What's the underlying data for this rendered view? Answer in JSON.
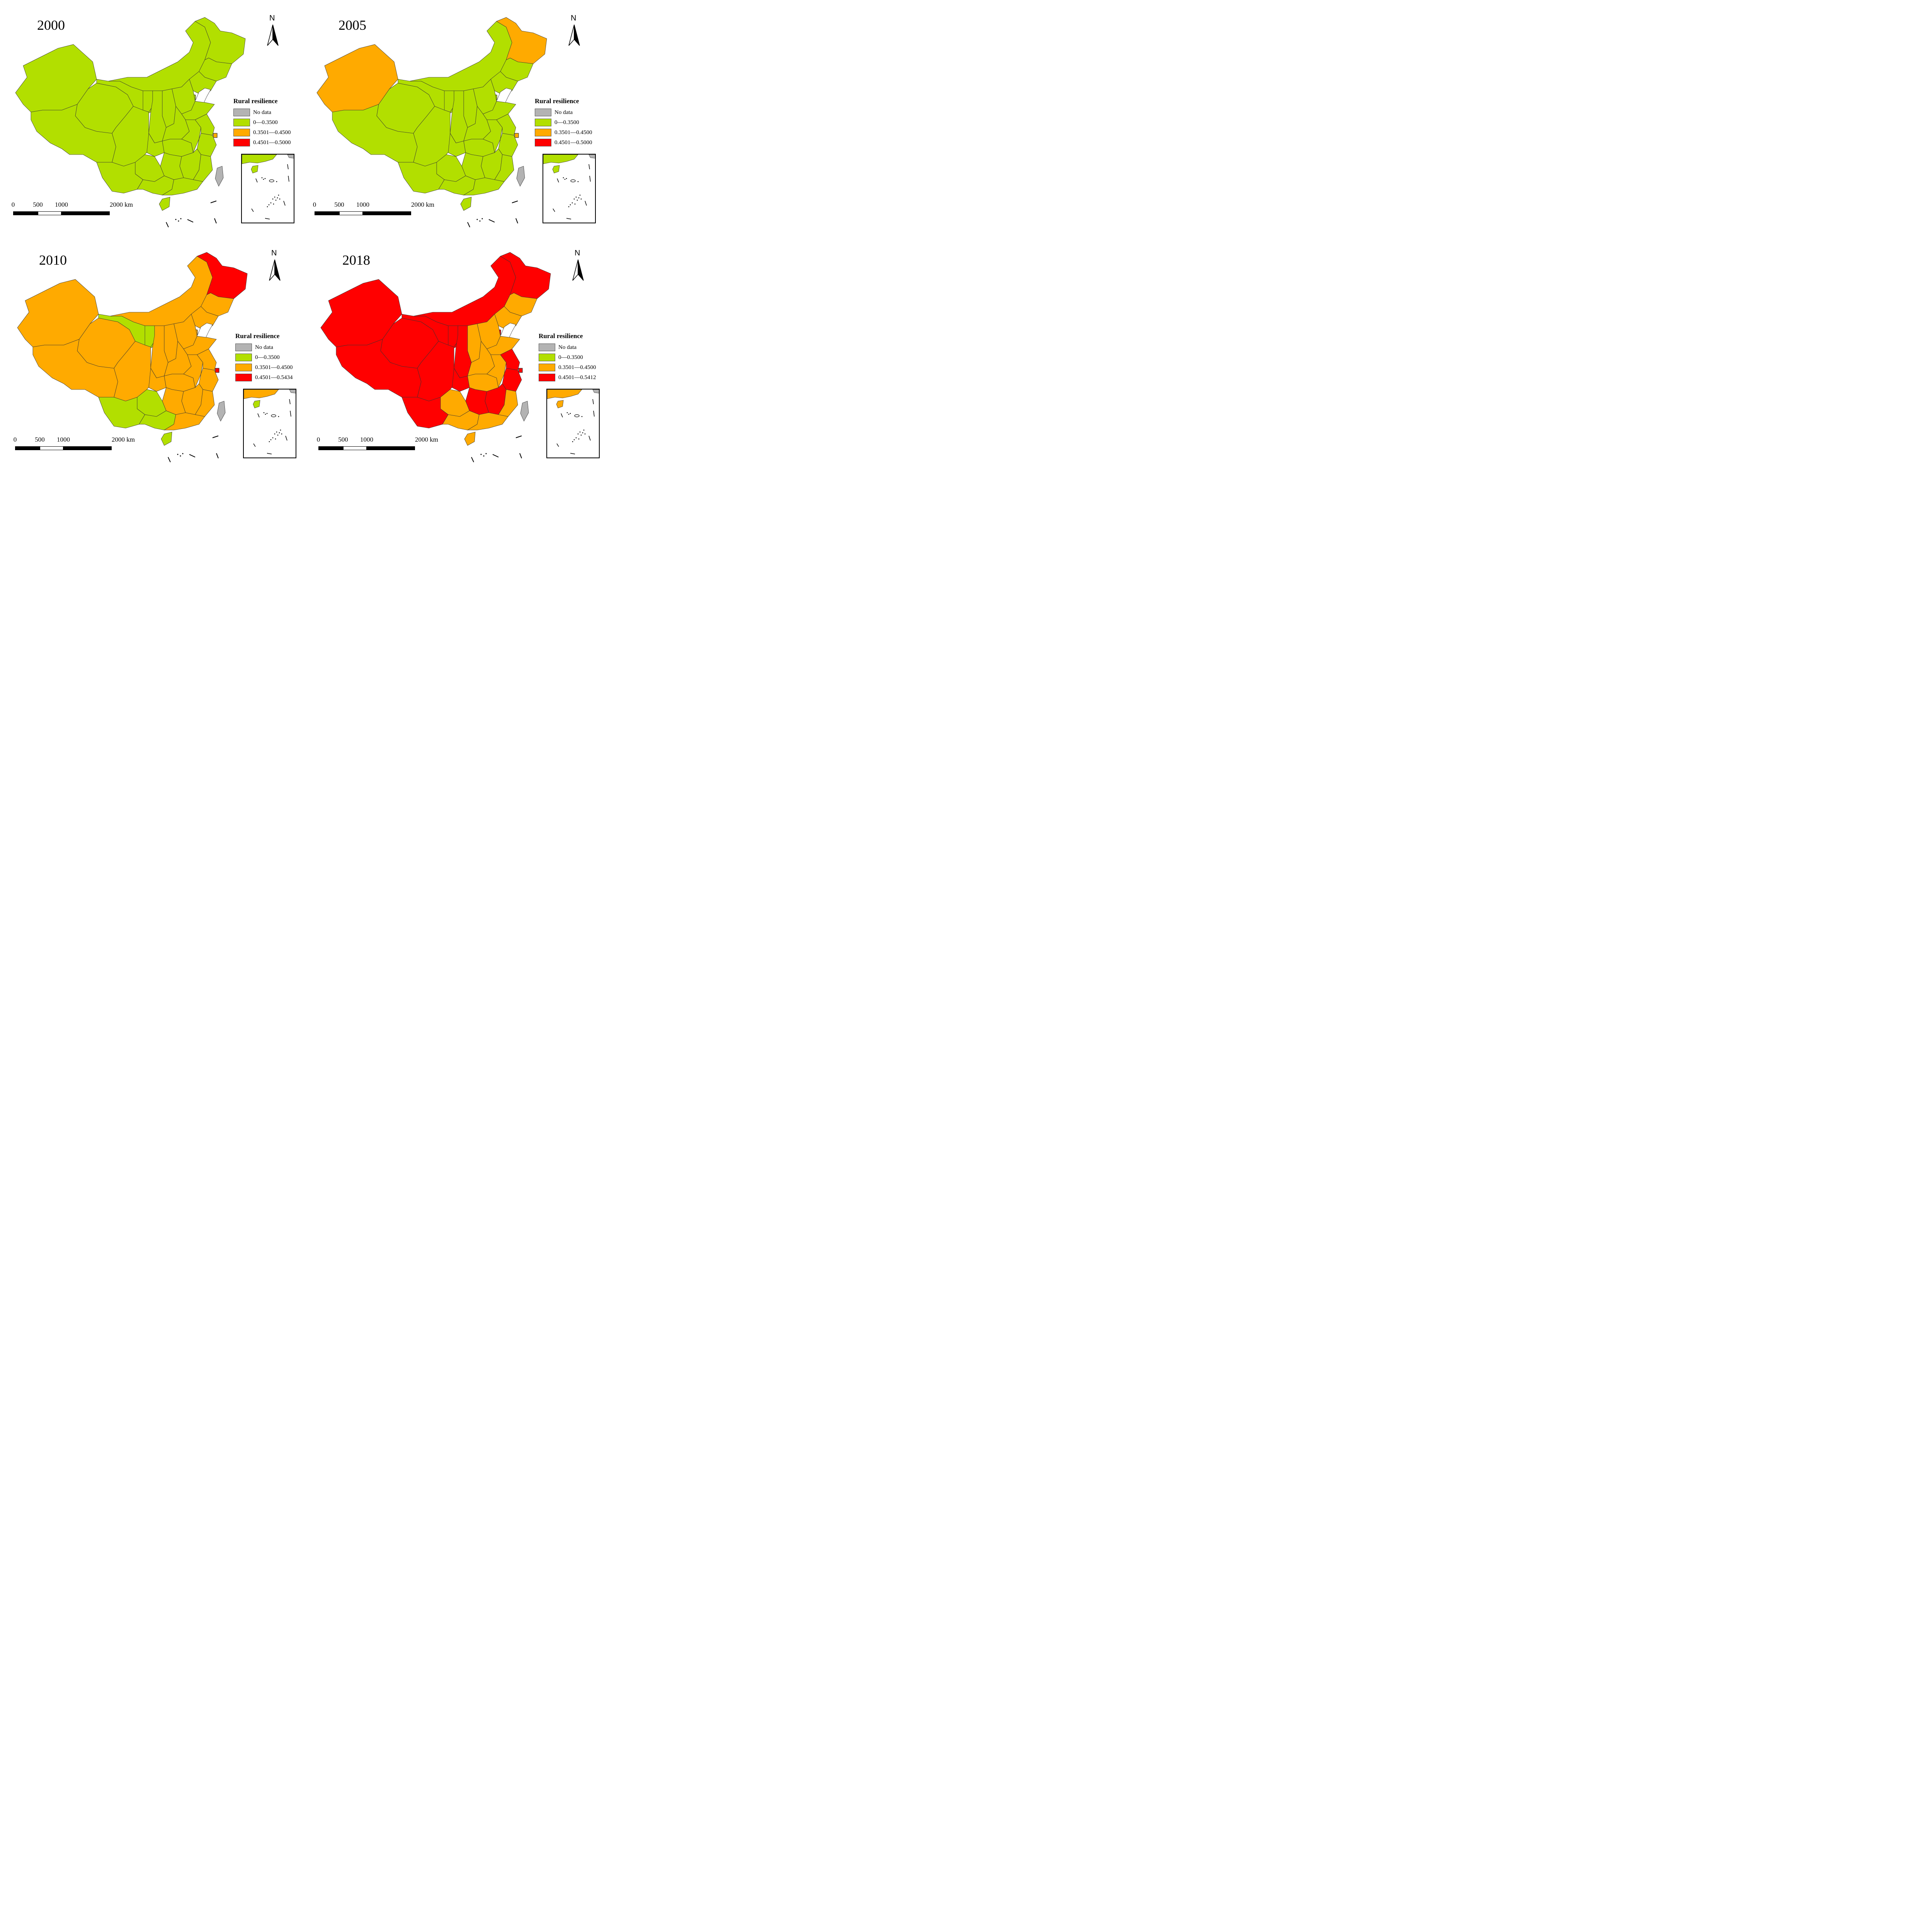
{
  "legend": {
    "title": "Rural resilience",
    "no_data_label": "No data",
    "no_data_color": "#b3b3b3",
    "class_colors": [
      "#b2df00",
      "#ffaa00",
      "#ff0000"
    ]
  },
  "north_label": "N",
  "scale_bar": {
    "labels": [
      "0",
      "500",
      "1000",
      "2000 km"
    ]
  },
  "panels": [
    {
      "year": "2000",
      "legend_classes": [
        "0—0.3500",
        "0.3501—0.4500",
        "0.4501—0.5000"
      ],
      "region_classes": {
        "default": 0,
        "beijing": 1,
        "shanghai": 1
      }
    },
    {
      "year": "2005",
      "legend_classes": [
        "0—0.3500",
        "0.3501—0.4500",
        "0.4501—0.5000"
      ],
      "region_classes": {
        "default": 0,
        "xinjiang": 1,
        "heilongjiang": 1,
        "beijing": 1,
        "shanghai": 1
      }
    },
    {
      "year": "2010",
      "legend_classes": [
        "0—0.3500",
        "0.3501—0.4500",
        "0.4501—0.5434"
      ],
      "region_classes": {
        "default": 1,
        "heilongjiang": 2,
        "beijing": 2,
        "shanghai": 2,
        "gansu": 0,
        "ningxia": 0,
        "yunnan": 0,
        "guizhou": 0,
        "guangxi": 0,
        "hainan": 0
      }
    },
    {
      "year": "2018",
      "legend_classes": [
        "0—0.3500",
        "0.3501—0.4500",
        "0.4501—0.5412"
      ],
      "region_classes": {
        "default": 2,
        "jilin": 1,
        "liaoning": 1,
        "hebei": 1,
        "shanxi": 1,
        "shandong": 1,
        "henan": 1,
        "anhui": 1,
        "hubei": 1,
        "guizhou": 1,
        "guangxi": 1,
        "guangdong": 1,
        "fujian": 1,
        "hainan": 1
      }
    }
  ]
}
